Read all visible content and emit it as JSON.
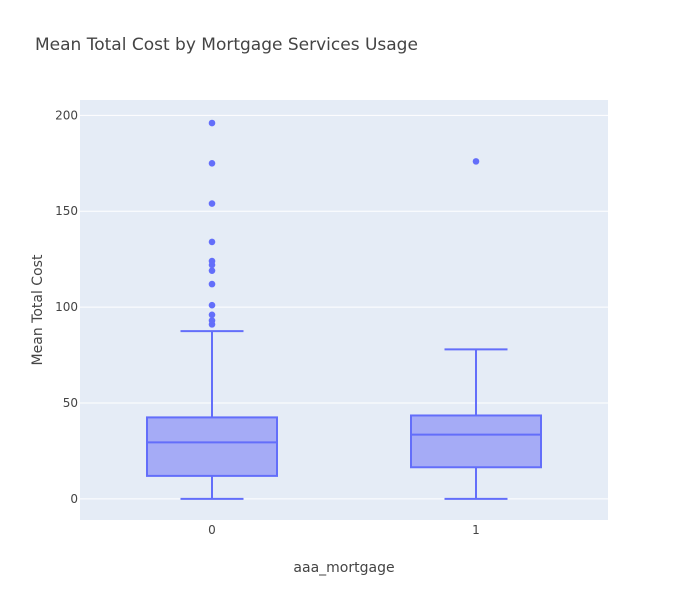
{
  "chart_data": {
    "type": "box",
    "title": "Mean Total Cost by Mortgage Services Usage",
    "xlabel": "aaa_mortgage",
    "ylabel": "Mean Total Cost",
    "categories": [
      "0",
      "1"
    ],
    "ylim": [
      -11,
      208
    ],
    "yticks": [
      0,
      50,
      100,
      150,
      200
    ],
    "grid": true,
    "boxes": [
      {
        "category": "0",
        "lower_fence": 0,
        "q1": 12,
        "median": 29.5,
        "q3": 42.5,
        "upper_fence": 87.5,
        "outliers": [
          91,
          93,
          96,
          101,
          112,
          119,
          122,
          124,
          134,
          154,
          175,
          196
        ]
      },
      {
        "category": "1",
        "lower_fence": 0,
        "q1": 16.5,
        "median": 33.5,
        "q3": 43.5,
        "upper_fence": 78,
        "outliers": [
          176
        ]
      }
    ],
    "colors": {
      "box_line": "#636efa",
      "box_fill": "#a5abf6",
      "plot_bg": "#e5ecf6",
      "grid": "#ffffff"
    }
  }
}
